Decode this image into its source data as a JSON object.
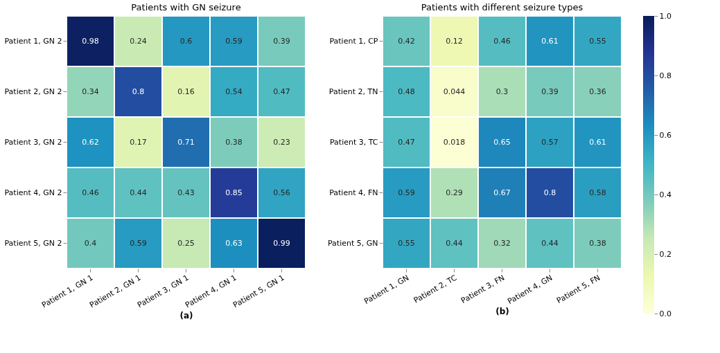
{
  "chart_data": [
    {
      "type": "heatmap",
      "title": "Patients with GN seizure",
      "xlabel": "(a)",
      "categories": [
        "Patient 1, GN 1",
        "Patient 2, GN 1",
        "Patient 3, GN 1",
        "Patient 4, GN 1",
        "Patient 5, GN 1"
      ],
      "y_categories": [
        "Patient 1, GN 2",
        "Patient 2, GN 2",
        "Patient 3, GN 2",
        "Patient 4, GN 2",
        "Patient 5, GN 2"
      ],
      "cells": [
        [
          0.98,
          0.24,
          0.6,
          0.59,
          0.39
        ],
        [
          0.34,
          0.8,
          0.16,
          0.54,
          0.47
        ],
        [
          0.62,
          0.17,
          0.71,
          0.38,
          0.23
        ],
        [
          0.46,
          0.44,
          0.43,
          0.85,
          0.56
        ],
        [
          0.4,
          0.59,
          0.25,
          0.63,
          0.99
        ]
      ],
      "data_labels": true
    },
    {
      "type": "heatmap",
      "title": "Patients with different seizure types",
      "xlabel": "(b)",
      "categories": [
        "Patient 1, GN",
        "Patient 2, TC",
        "Patient 3, FN",
        "Patient 4, GN",
        "Patient 5, FN"
      ],
      "y_categories": [
        "Patient 1, CP",
        "Patient 2, TN",
        "Patient 3, TC",
        "Patient 4, FN",
        "Patient 5, GN"
      ],
      "cells": [
        [
          0.42,
          0.12,
          0.46,
          0.61,
          0.55
        ],
        [
          0.48,
          0.044,
          0.3,
          0.39,
          0.36
        ],
        [
          0.47,
          0.018,
          0.65,
          0.57,
          0.61
        ],
        [
          0.59,
          0.29,
          0.67,
          0.8,
          0.58
        ],
        [
          0.55,
          0.44,
          0.32,
          0.44,
          0.38
        ]
      ],
      "clim": [
        0,
        1
      ],
      "cticks": [
        {
          "value": 0,
          "label": "0.0"
        },
        0.2,
        0.4,
        0.6,
        0.8,
        {
          "value": 1,
          "label": "1.0"
        }
      ],
      "data_labels": true
    }
  ]
}
